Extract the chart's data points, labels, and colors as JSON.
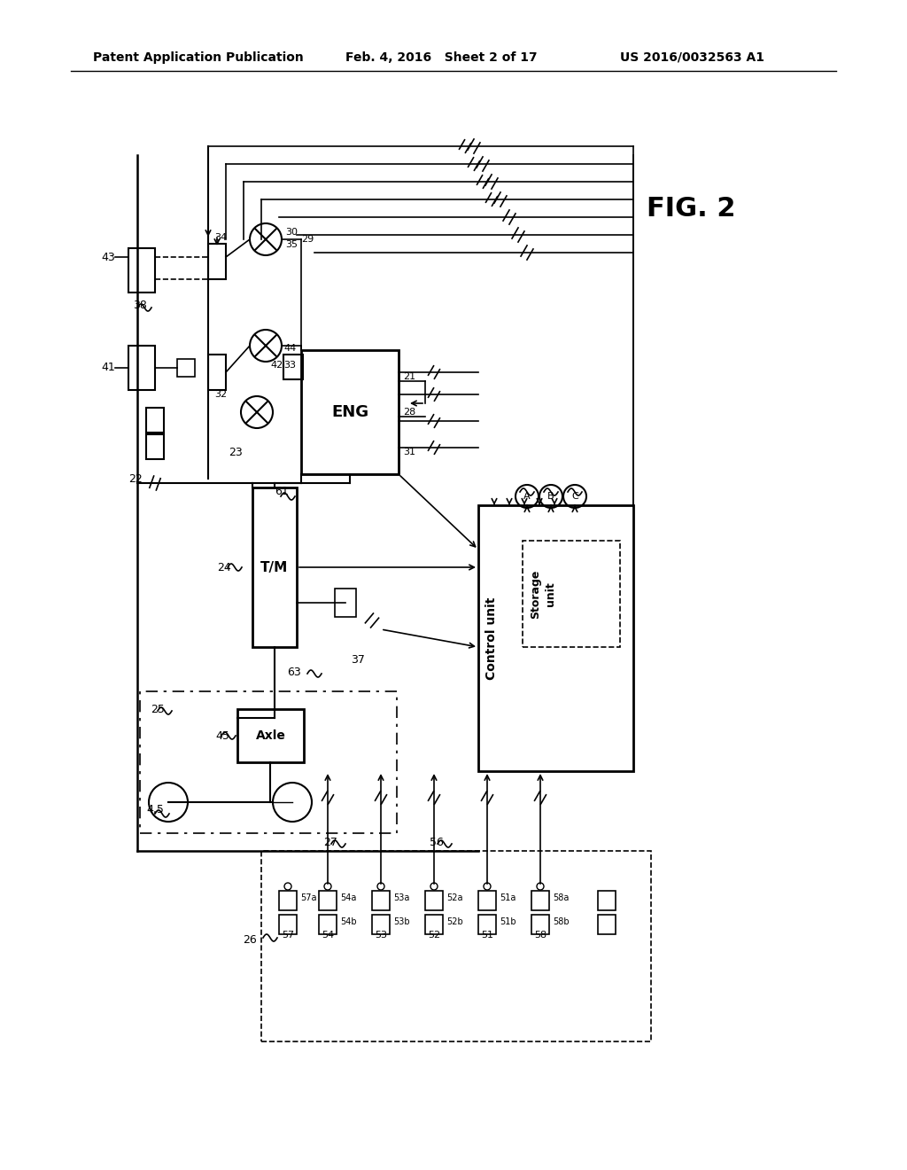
{
  "title_left": "Patent Application Publication",
  "title_center": "Feb. 4, 2016   Sheet 2 of 17",
  "title_right": "US 2016/0032563 A1",
  "fig_label": "FIG. 2",
  "background": "#ffffff",
  "line_color": "#000000",
  "fig_width": 10.24,
  "fig_height": 13.2
}
